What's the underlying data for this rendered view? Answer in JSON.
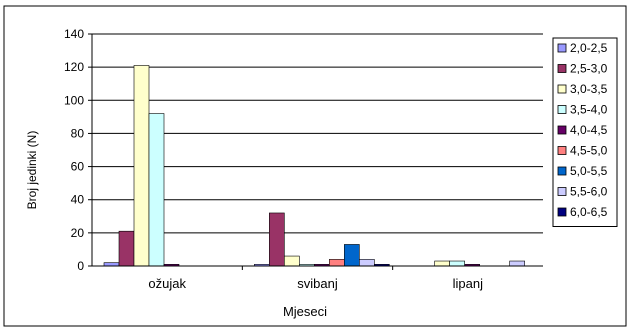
{
  "chart_data": {
    "type": "bar",
    "categories": [
      "ožujak",
      "svibanj",
      "lipanj"
    ],
    "xlabel": "Mjeseci",
    "ylabel": "Broj jedinki (N)",
    "ylim": [
      0,
      140
    ],
    "yticks": [
      0,
      20,
      40,
      60,
      80,
      100,
      120,
      140
    ],
    "grid": true,
    "legend_position": "right",
    "series": [
      {
        "name": "2,0-2,5",
        "color": "#9999FF",
        "values": [
          2,
          1,
          0
        ]
      },
      {
        "name": "2,5-3,0",
        "color": "#993366",
        "values": [
          21,
          32,
          0
        ]
      },
      {
        "name": "3,0-3,5",
        "color": "#FFFFCC",
        "values": [
          121,
          6,
          3
        ]
      },
      {
        "name": "3,5-4,0",
        "color": "#CCFFFF",
        "values": [
          92,
          1,
          3
        ]
      },
      {
        "name": "4,0-4,5",
        "color": "#660066",
        "values": [
          1,
          1,
          1
        ]
      },
      {
        "name": "4,5-5,0",
        "color": "#FF8080",
        "values": [
          0,
          4,
          0
        ]
      },
      {
        "name": "5,0-5,5",
        "color": "#0066CC",
        "values": [
          0,
          13,
          0
        ]
      },
      {
        "name": "5,5-6,0",
        "color": "#CCCCFF",
        "values": [
          0,
          4,
          3
        ]
      },
      {
        "name": "6,0-6,5",
        "color": "#000080",
        "values": [
          0,
          1,
          0
        ]
      }
    ]
  }
}
